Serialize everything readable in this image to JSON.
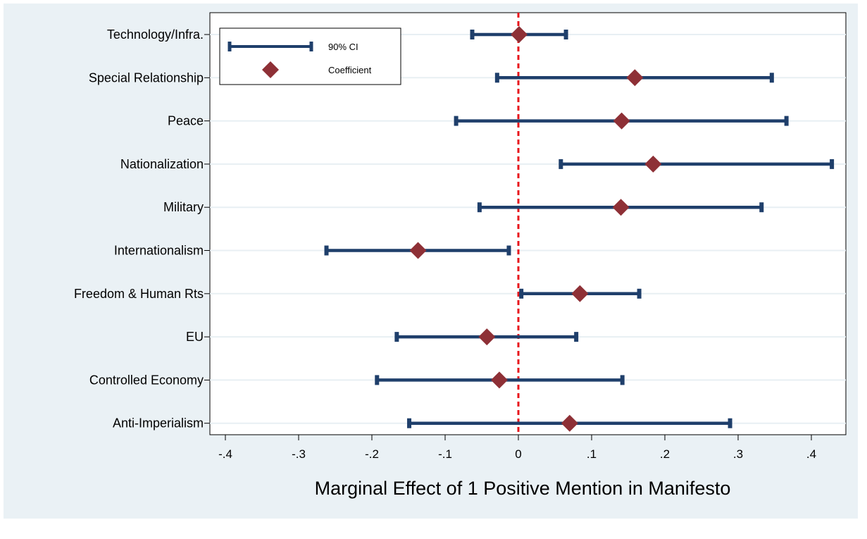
{
  "chart_data": {
    "type": "scatter",
    "xlabel": "Marginal Effect of 1 Positive Mention in Manifesto",
    "xlim": [
      -0.42,
      0.45
    ],
    "xticks": [
      -0.4,
      -0.3,
      -0.2,
      -0.1,
      0,
      0.1,
      0.2,
      0.3,
      0.4
    ],
    "xtick_labels": [
      "-.4",
      "-.3",
      "-.2",
      "-.1",
      "0",
      ".1",
      ".2",
      ".3",
      ".4"
    ],
    "reference_line": 0,
    "grid": true,
    "legend_position": "top-left",
    "legend": [
      {
        "label": "90% CI",
        "symbol": "errorbar"
      },
      {
        "label": "Coefficient",
        "symbol": "diamond"
      }
    ],
    "colors": {
      "ci": "#1f3f6b",
      "coefficient": "#8e3036",
      "reference": "#e8141b",
      "background": "#eaf1f5",
      "gridline": "#e8eff3"
    },
    "categories": [
      "Technology/Infra.",
      "Special Relationship",
      "Peace",
      "Nationalization",
      "Military",
      "Internationalism",
      "Freedom & Human Rts",
      "EU",
      "Controlled Economy",
      "Anti-Imperialism"
    ],
    "coefficient": [
      0.001,
      0.159,
      0.141,
      0.184,
      0.14,
      -0.137,
      0.084,
      -0.043,
      -0.026,
      0.07
    ],
    "ci_low": [
      -0.063,
      -0.029,
      -0.085,
      0.058,
      -0.053,
      -0.262,
      0.004,
      -0.166,
      -0.193,
      -0.149
    ],
    "ci_high": [
      0.065,
      0.346,
      0.366,
      0.428,
      0.332,
      -0.013,
      0.165,
      0.079,
      0.142,
      0.289
    ]
  }
}
